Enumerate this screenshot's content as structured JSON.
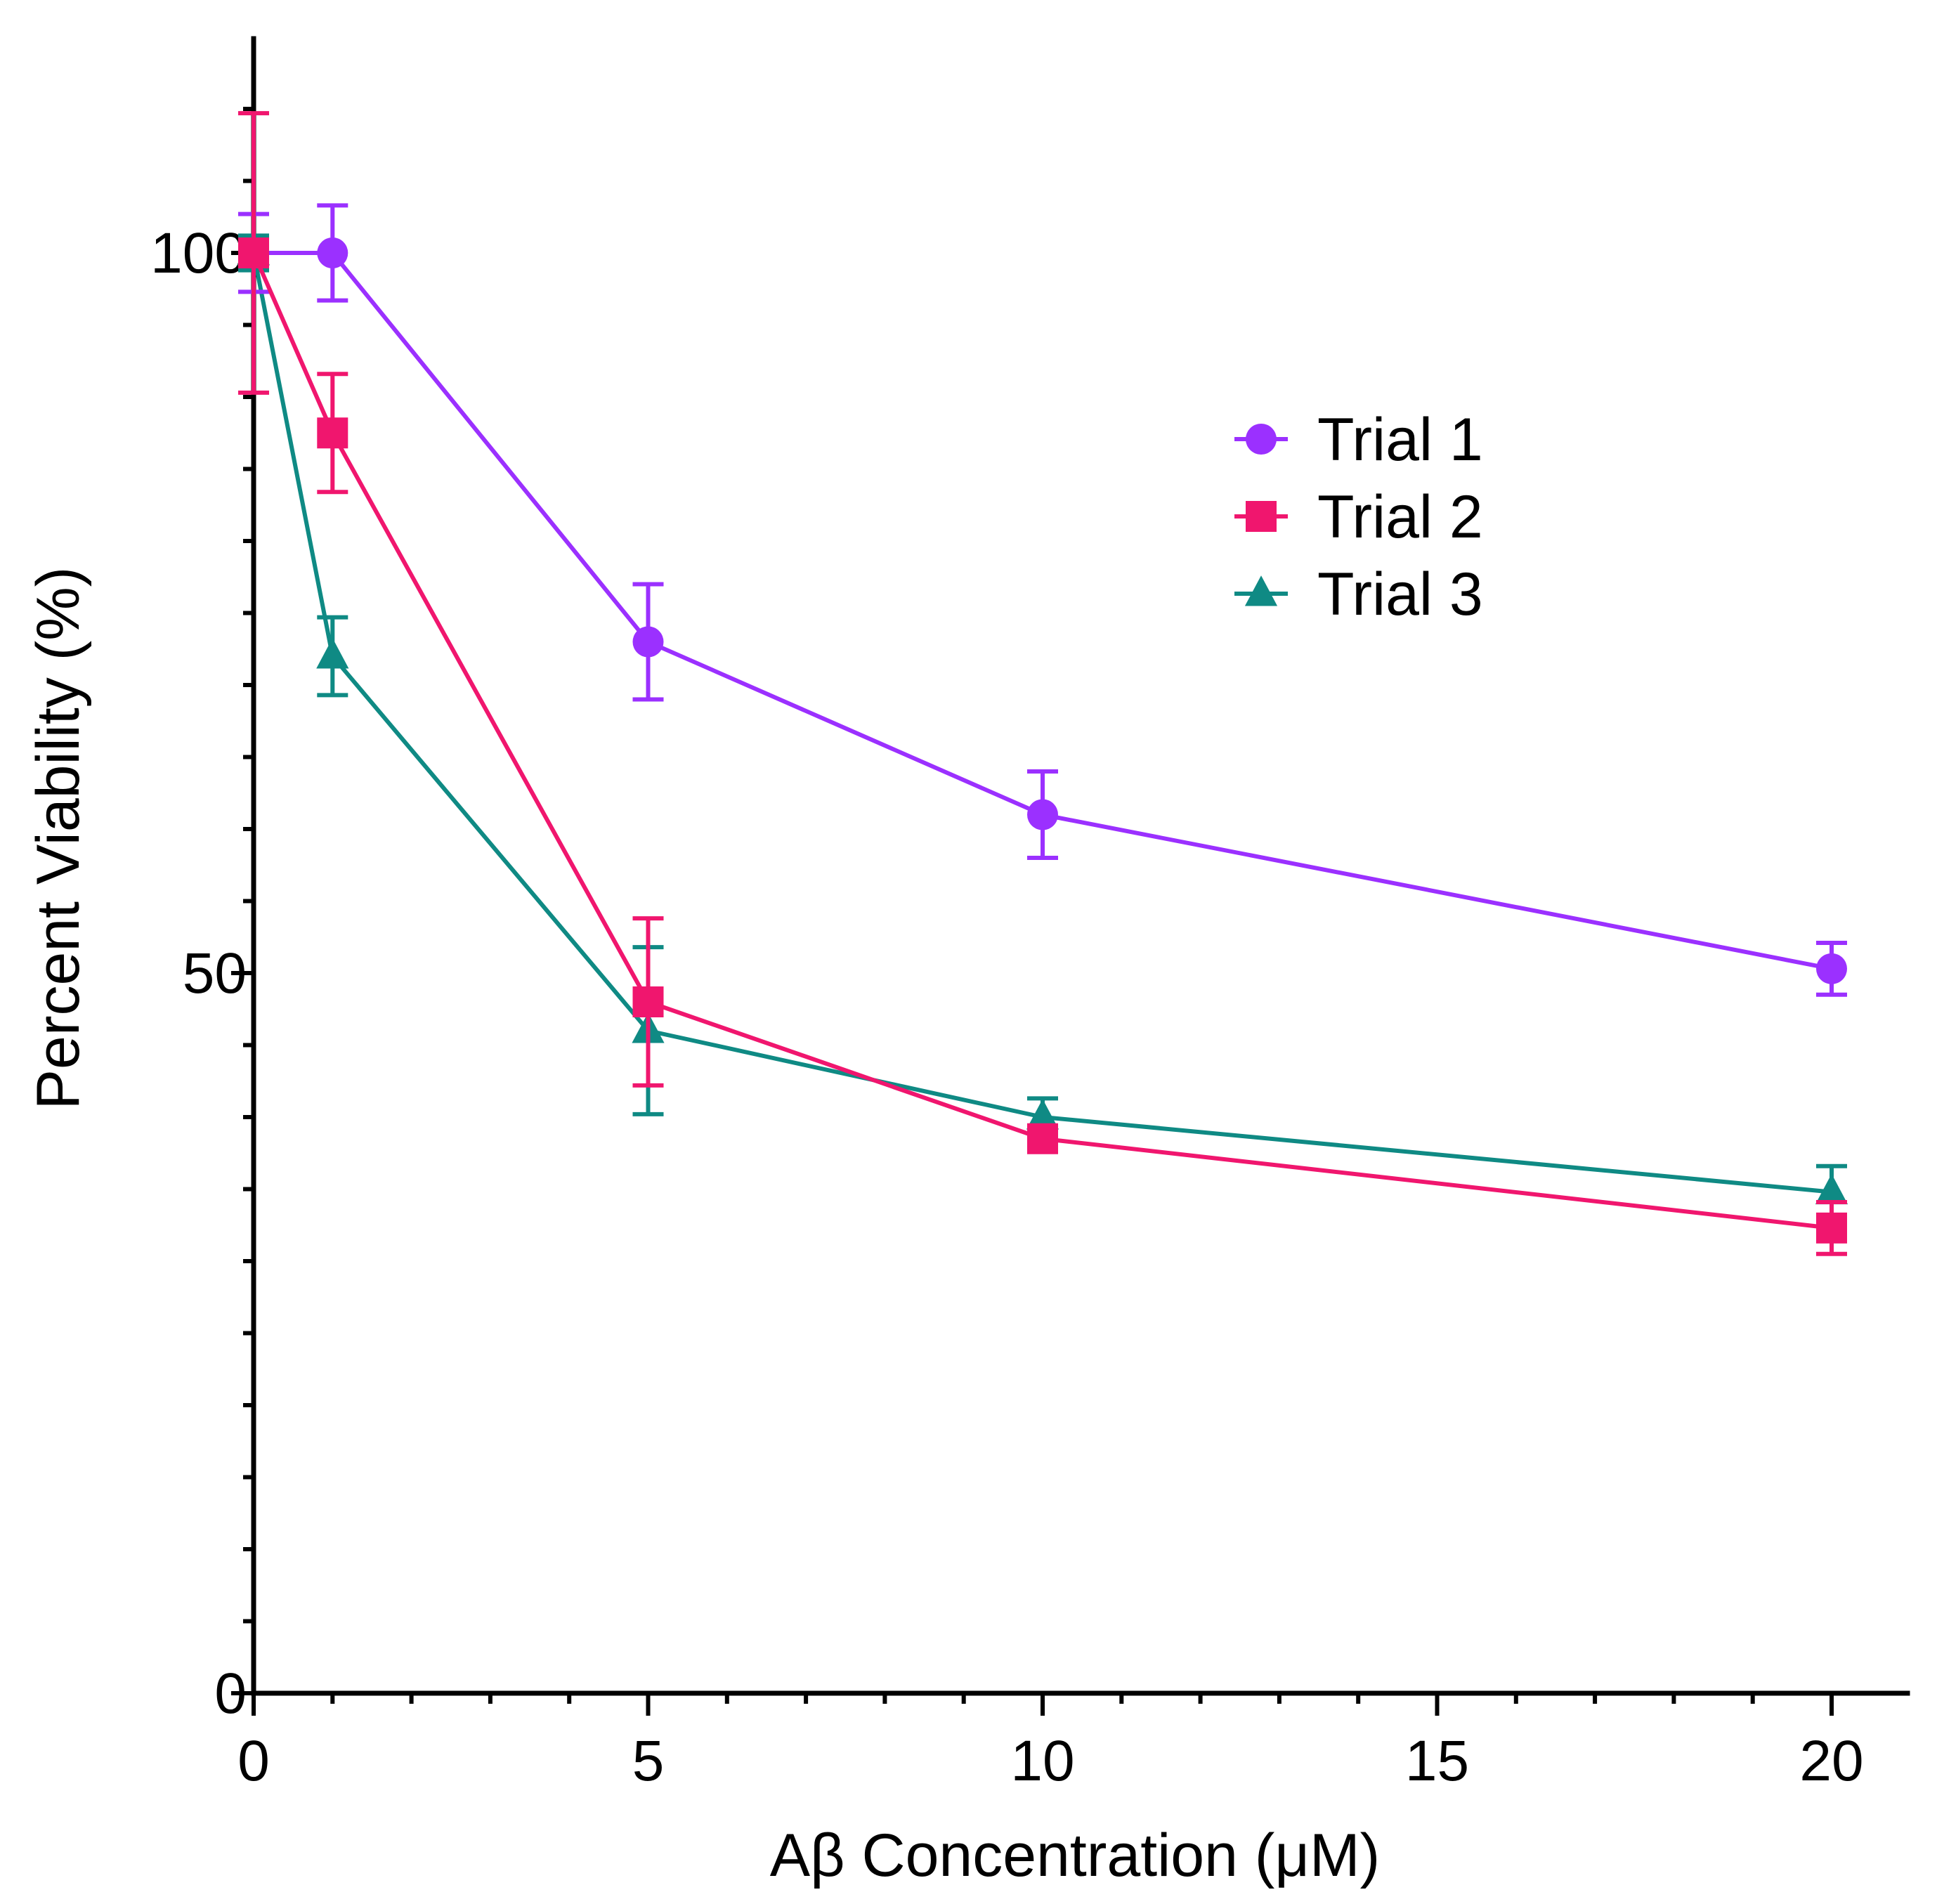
{
  "chart_data": {
    "type": "line",
    "title": "",
    "xlabel": "Aβ Concentration (μM)",
    "ylabel": "Percent Viability (%)",
    "xlim": [
      0,
      21
    ],
    "ylim": [
      0,
      115
    ],
    "x_ticks": [
      0,
      5,
      10,
      15,
      20
    ],
    "x_tick_labels": [
      "0",
      "5",
      "10",
      "15",
      "20"
    ],
    "y_ticks": [
      0,
      50,
      100
    ],
    "y_tick_labels": [
      "0",
      "50",
      "100"
    ],
    "x_minor_step": 1,
    "y_minor_step": 5,
    "grid": false,
    "legend_position": "top-right",
    "series": [
      {
        "name": "Trial 1",
        "color": "#9b30ff",
        "marker": "circle",
        "x": [
          0,
          1,
          5,
          10,
          20
        ],
        "y": [
          100,
          100,
          73,
          61,
          50.3
        ],
        "err": [
          2.7,
          3.3,
          4,
          3,
          1.8
        ]
      },
      {
        "name": "Trial 2",
        "color": "#f0166e",
        "marker": "square",
        "x": [
          0,
          1,
          5,
          10,
          20
        ],
        "y": [
          100,
          87.5,
          48,
          38.5,
          32.3
        ],
        "err": [
          9.7,
          4.1,
          5.8,
          0.8,
          1.8
        ]
      },
      {
        "name": "Trial 3",
        "color": "#0f8a84",
        "marker": "triangle",
        "x": [
          0,
          1,
          5,
          10,
          20
        ],
        "y": [
          100,
          72,
          46,
          40,
          34.8
        ],
        "err": [
          1.2,
          2.7,
          5.8,
          1.3,
          1.8
        ]
      }
    ]
  }
}
